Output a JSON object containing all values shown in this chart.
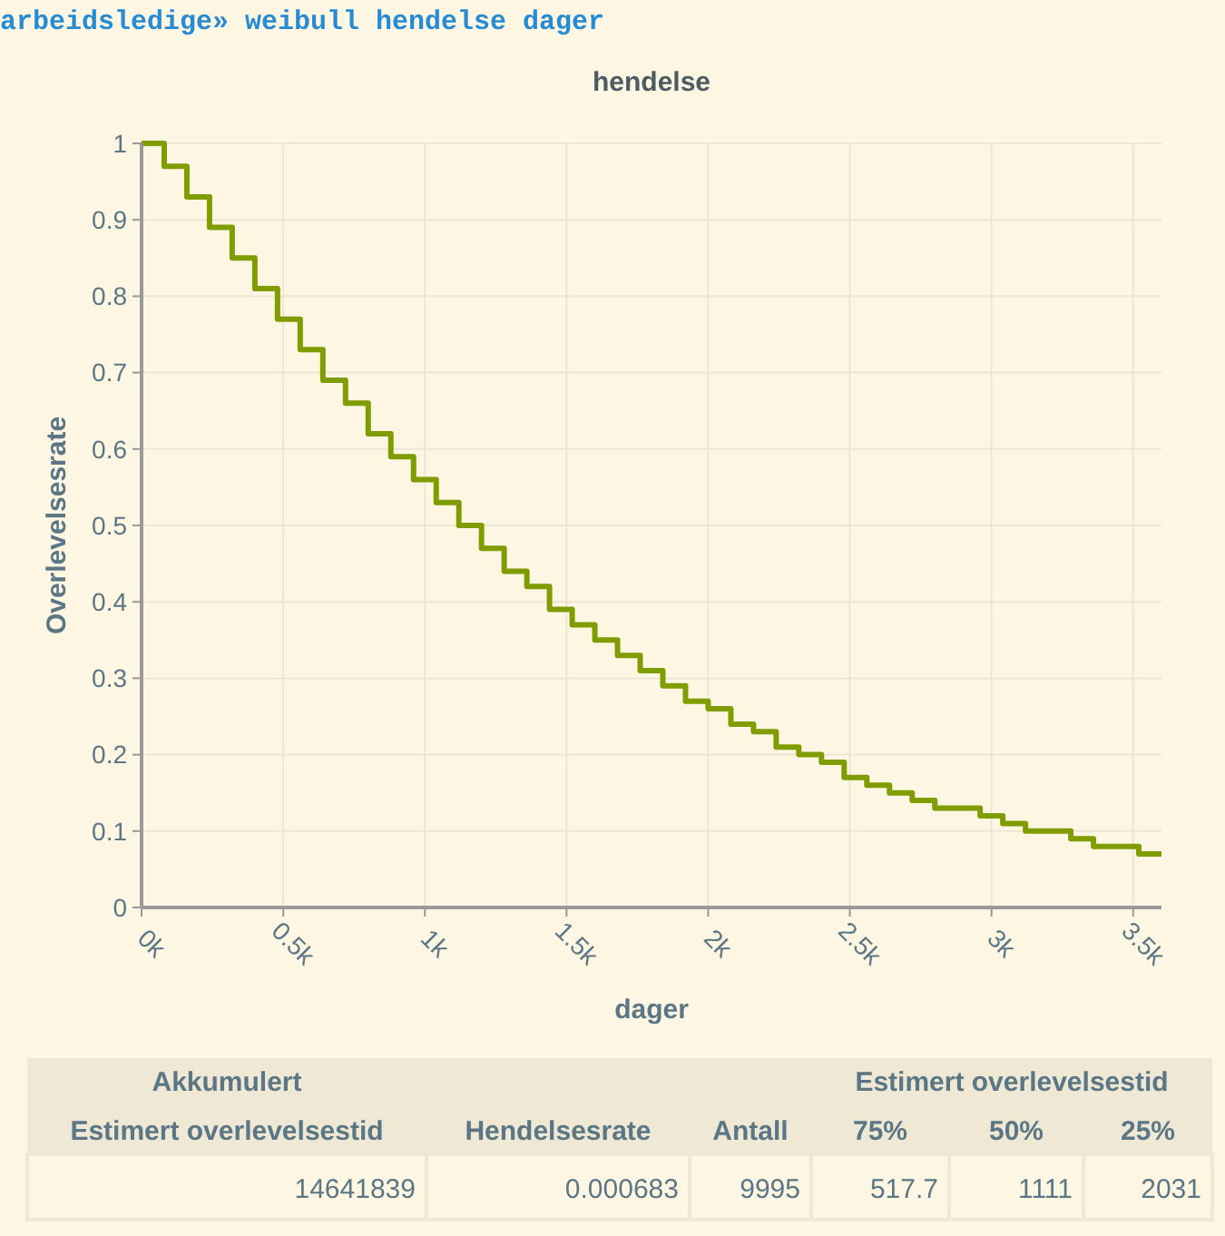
{
  "chart_data": {
    "type": "step",
    "title": "hendelse",
    "subtitle": "arbeidsledige» weibull hendelse dager",
    "xlabel": "dager",
    "ylabel": "Overlevelsesrate",
    "x": [
      0,
      80,
      160,
      240,
      320,
      400,
      480,
      560,
      640,
      720,
      800,
      880,
      960,
      1040,
      1120,
      1200,
      1280,
      1360,
      1440,
      1520,
      1600,
      1680,
      1760,
      1840,
      1920,
      2000,
      2080,
      2160,
      2240,
      2320,
      2400,
      2480,
      2560,
      2640,
      2720,
      2800,
      2880,
      2960,
      3040,
      3120,
      3200,
      3280,
      3360,
      3440,
      3520,
      3600
    ],
    "series": [
      {
        "color": "#7f9c00",
        "values": [
          1,
          0.97,
          0.93,
          0.89,
          0.85,
          0.81,
          0.77,
          0.73,
          0.69,
          0.66,
          0.62,
          0.59,
          0.56,
          0.53,
          0.5,
          0.47,
          0.44,
          0.42,
          0.39,
          0.37,
          0.35,
          0.33,
          0.31,
          0.29,
          0.27,
          0.26,
          0.24,
          0.23,
          0.21,
          0.2,
          0.19,
          0.17,
          0.16,
          0.15,
          0.14,
          0.13,
          0.13,
          0.12,
          0.11,
          0.1,
          0.1,
          0.09,
          0.08,
          0.08,
          0.07,
          0.07
        ]
      }
    ],
    "xlim": [
      0,
      3600
    ],
    "ylim": [
      0,
      1
    ],
    "xticks": [
      {
        "value": 0,
        "label": "0k"
      },
      {
        "value": 500,
        "label": "0.5k"
      },
      {
        "value": 1000,
        "label": "1k"
      },
      {
        "value": 1500,
        "label": "1.5k"
      },
      {
        "value": 2000,
        "label": "2k"
      },
      {
        "value": 2500,
        "label": "2.5k"
      },
      {
        "value": 3000,
        "label": "3k"
      },
      {
        "value": 3500,
        "label": "3.5k"
      }
    ],
    "yticks": [
      0,
      {
        "value": 0.1,
        "label": "0.1"
      },
      {
        "value": 0.2,
        "label": "0.2"
      },
      {
        "value": 0.3,
        "label": "0.3"
      },
      {
        "value": 0.4,
        "label": "0.4"
      },
      {
        "value": 0.5,
        "label": "0.5"
      },
      {
        "value": 0.6,
        "label": "0.6"
      },
      {
        "value": 0.7,
        "label": "0.7"
      },
      {
        "value": 0.8,
        "label": "0.8"
      },
      {
        "value": 0.9,
        "label": "0.9"
      },
      1
    ],
    "grid": true,
    "line_style": "solid",
    "marker": "none",
    "annotations": [
      "Akkumulert",
      "Estimert overlevelsestid",
      "Estimert overlevelsestid",
      "Hendelsesrate",
      "Antall",
      "75%",
      "50%",
      "25%",
      "14641839",
      "0.000683",
      "9995",
      "517.7",
      "1111",
      "2031"
    ]
  }
}
